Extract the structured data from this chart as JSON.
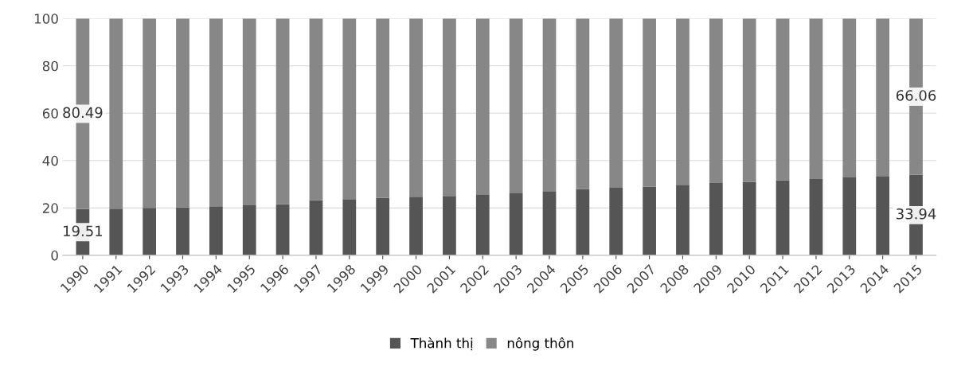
{
  "chart_data": {
    "type": "bar",
    "stacked": true,
    "categories": [
      "1990",
      "1991",
      "1992",
      "1993",
      "1994",
      "1995",
      "1996",
      "1997",
      "1998",
      "1999",
      "2000",
      "2001",
      "2002",
      "2003",
      "2004",
      "2005",
      "2006",
      "2007",
      "2008",
      "2009",
      "2010",
      "2011",
      "2012",
      "2013",
      "2014",
      "2015"
    ],
    "series": [
      {
        "name": "Thành thị",
        "color": "#555555",
        "values": [
          19.51,
          19.7,
          20.0,
          20.3,
          20.7,
          21.1,
          21.5,
          23.2,
          23.7,
          24.2,
          24.7,
          25.1,
          25.7,
          26.4,
          27.1,
          27.9,
          28.5,
          29.0,
          29.8,
          30.5,
          31.0,
          31.7,
          32.2,
          32.9,
          33.5,
          33.94
        ],
        "value_labels": [
          "19.51",
          null,
          null,
          null,
          null,
          null,
          null,
          null,
          null,
          null,
          null,
          null,
          null,
          null,
          null,
          null,
          null,
          null,
          null,
          null,
          null,
          null,
          null,
          null,
          null,
          "33.94"
        ]
      },
      {
        "name": "nông thôn",
        "color": "#878787",
        "values": [
          80.49,
          80.3,
          80.0,
          79.7,
          79.3,
          78.9,
          78.5,
          76.8,
          76.3,
          75.8,
          75.3,
          74.9,
          74.3,
          73.6,
          72.9,
          72.1,
          71.5,
          71.0,
          70.2,
          69.5,
          69.0,
          68.3,
          67.8,
          67.1,
          66.5,
          66.06
        ],
        "value_labels": [
          "80.49",
          null,
          null,
          null,
          null,
          null,
          null,
          null,
          null,
          null,
          null,
          null,
          null,
          null,
          null,
          null,
          null,
          null,
          null,
          null,
          null,
          null,
          null,
          null,
          null,
          "66.06"
        ]
      }
    ],
    "ylim": [
      0,
      100
    ],
    "yticks": [
      0,
      20,
      40,
      60,
      80,
      100
    ],
    "grid": "y",
    "legend": "bottom"
  }
}
